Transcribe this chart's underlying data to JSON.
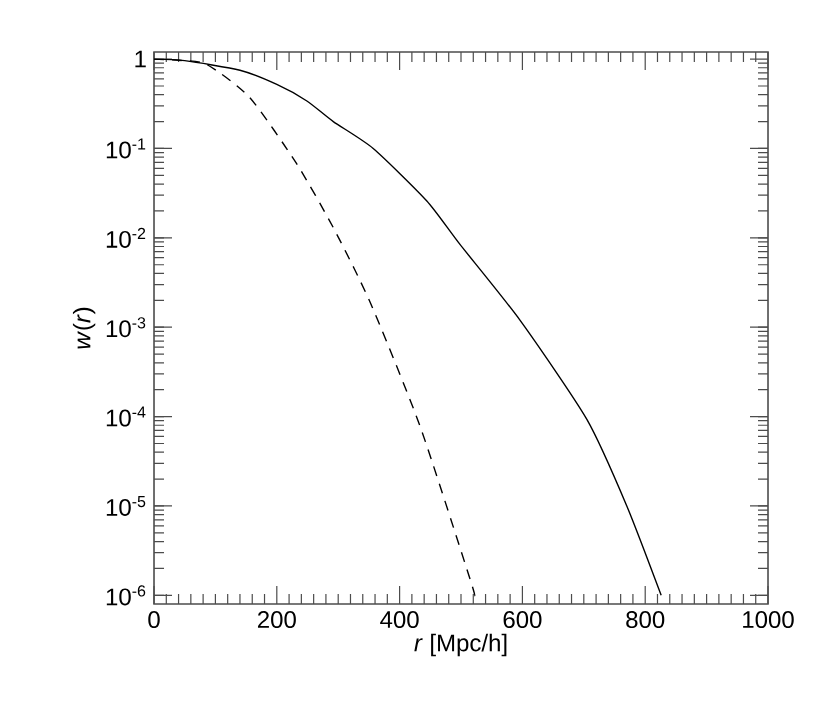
{
  "chart_data": {
    "type": "line",
    "xlabel": "*r* [Mpc/h]",
    "ylabel": "*w*(*r*)",
    "log": "y",
    "xlim": [
      0,
      1000
    ],
    "ylim": [
      8e-07,
      1.2
    ],
    "xticks": [
      0,
      200,
      400,
      600,
      800,
      1000
    ],
    "yticks": [
      {
        "value": 1e-06,
        "label": "10$^{-6}$"
      },
      {
        "value": 1e-05,
        "label": "10$^{-5}$"
      },
      {
        "value": 0.0001,
        "label": "10$^{-4}$"
      },
      {
        "value": 0.001,
        "label": "10$^{-3}$"
      },
      {
        "value": 0.01,
        "label": "10$^{-2}$"
      },
      {
        "value": 0.1,
        "label": "10$^{-1}$"
      },
      1
    ],
    "grid": false,
    "series": [
      {
        "color": "#000000",
        "line_style": "solid",
        "x": [
          0,
          50,
          140,
          200,
          249,
          292,
          357,
          444,
          498,
          596,
          705,
          770,
          826
        ],
        "values": [
          1.0,
          0.96,
          0.75,
          0.52,
          0.34,
          0.2,
          0.1,
          0.026,
          0.0085,
          0.0012,
          9.3e-05,
          1e-05,
          1e-06
        ]
      },
      {
        "color": "#000000",
        "line_style": "dashed",
        "x": [
          0,
          40,
          86,
          156,
          232,
          292,
          352,
          433,
          515,
          522
        ],
        "values": [
          1.0,
          0.97,
          0.87,
          0.37,
          0.068,
          0.013,
          0.0019,
          7.9e-05,
          1.5e-06,
          1e-06
        ]
      }
    ]
  }
}
